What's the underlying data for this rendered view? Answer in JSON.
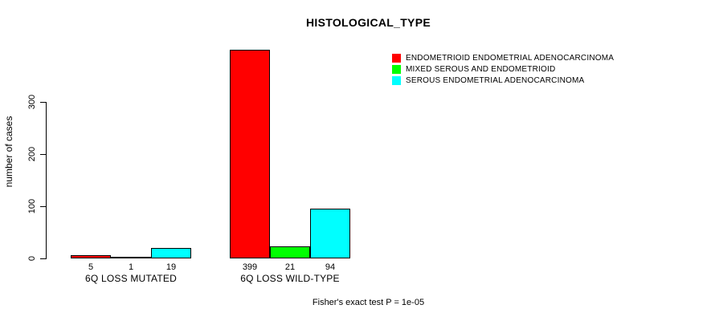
{
  "chart_data": {
    "type": "bar",
    "title": "HISTOLOGICAL_TYPE",
    "ylabel": "number of cases",
    "xlabel": "",
    "annotation": "Fisher's exact test P = 1e-05",
    "categories": [
      "6Q LOSS MUTATED",
      "6Q LOSS WILD-TYPE"
    ],
    "series": [
      {
        "name": "ENDOMETRIOID ENDOMETRIAL ADENOCARCINOMA",
        "color": "#ff0000",
        "values": [
          5,
          399
        ]
      },
      {
        "name": "MIXED SEROUS AND ENDOMETRIOID",
        "color": "#00ff00",
        "values": [
          1,
          21
        ]
      },
      {
        "name": "SEROUS ENDOMETRIAL ADENOCARCINOMA",
        "color": "#00ffff",
        "values": [
          19,
          94
        ]
      }
    ],
    "bar_value_labels": [
      [
        "5",
        "1",
        "19"
      ],
      [
        "399",
        "21",
        "94"
      ]
    ],
    "y_ticks": [
      0,
      100,
      200,
      300
    ],
    "ylim": [
      0,
      300
    ],
    "grid": false,
    "legend_position": "top-right",
    "background": "#ffffff",
    "axis_color": "#000000"
  }
}
